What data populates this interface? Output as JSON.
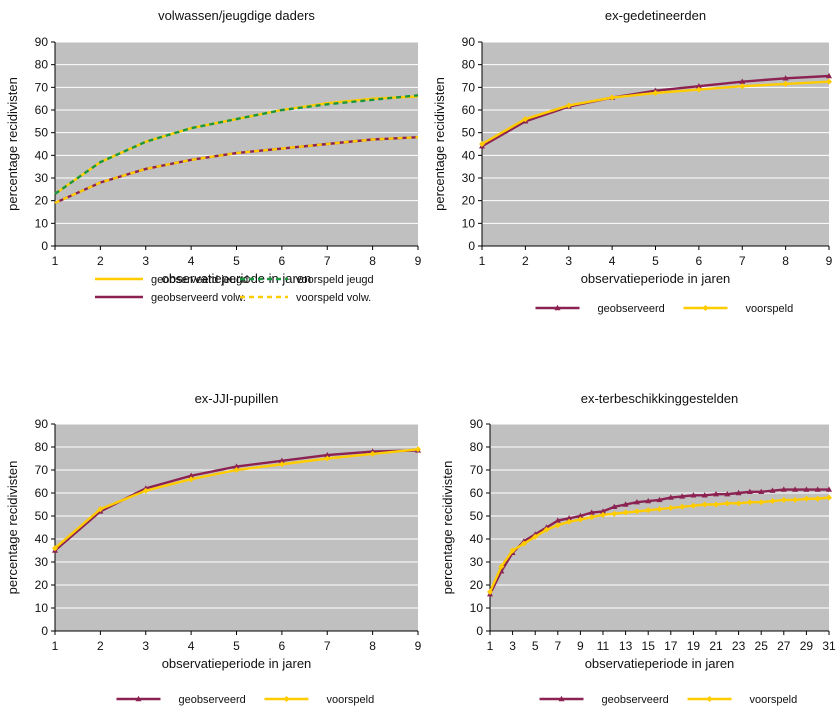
{
  "colors": {
    "plot_bg": "#c0c0c0",
    "grid": "#ffffff",
    "yellow": "#ffcc00",
    "green": "#1a9641",
    "purple": "#8b2252"
  },
  "chart_data": [
    {
      "type": "line",
      "title": "volwassen/jeugdige daders",
      "xlabel": "observatieperiode in jaren",
      "ylabel": "percentage recidivisten",
      "xlim": [
        1,
        9
      ],
      "ylim": [
        0,
        90
      ],
      "xticks": [
        1,
        2,
        3,
        4,
        5,
        6,
        7,
        8,
        9
      ],
      "yticks": [
        0,
        10,
        20,
        30,
        40,
        50,
        60,
        70,
        80,
        90
      ],
      "grid": true,
      "legend_position": "bottom",
      "series": [
        {
          "name": "geobserveerd jeugd",
          "color": "yellow",
          "style": "solid",
          "marker": "none",
          "x": [
            1,
            2,
            3,
            4,
            5,
            6,
            7,
            8,
            9
          ],
          "values": [
            23,
            37,
            46,
            52,
            56,
            60,
            63,
            65,
            66
          ]
        },
        {
          "name": "voorspeld jeugd",
          "color": "green",
          "style": "dashed",
          "marker": "none",
          "x": [
            1,
            2,
            3,
            4,
            5,
            6,
            7,
            8,
            9
          ],
          "values": [
            23,
            37,
            46,
            52,
            56,
            60,
            62.5,
            64.5,
            66.5
          ]
        },
        {
          "name": "geobserveerd volw.",
          "color": "purple",
          "style": "solid",
          "marker": "none",
          "x": [
            1,
            2,
            3,
            4,
            5,
            6,
            7,
            8,
            9
          ],
          "values": [
            19,
            28,
            34,
            38,
            41,
            43,
            45,
            47,
            48
          ]
        },
        {
          "name": "voorspeld volw.",
          "color": "yellow",
          "style": "dashed",
          "marker": "none",
          "x": [
            1,
            2,
            3,
            4,
            5,
            6,
            7,
            8,
            9
          ],
          "values": [
            19,
            28,
            34,
            38,
            41,
            43,
            45,
            47,
            48
          ]
        }
      ],
      "legend_layout": [
        [
          0,
          1
        ],
        [
          2,
          3
        ]
      ]
    },
    {
      "type": "line",
      "title": "ex-gedetineerden",
      "xlabel": "observatieperiode in jaren",
      "ylabel": "percentage recidivisten",
      "xlim": [
        1,
        9
      ],
      "ylim": [
        0,
        90
      ],
      "xticks": [
        1,
        2,
        3,
        4,
        5,
        6,
        7,
        8,
        9
      ],
      "yticks": [
        0,
        10,
        20,
        30,
        40,
        50,
        60,
        70,
        80,
        90
      ],
      "grid": true,
      "legend_position": "bottom",
      "series": [
        {
          "name": "geobserveerd",
          "color": "purple",
          "style": "solid",
          "marker": "triangle",
          "x": [
            1,
            2,
            3,
            4,
            5,
            6,
            7,
            8,
            9
          ],
          "values": [
            44,
            55,
            61.5,
            65.5,
            68.5,
            70.5,
            72.5,
            74,
            75
          ]
        },
        {
          "name": "voorspeld",
          "color": "yellow",
          "style": "solid",
          "marker": "diamond",
          "x": [
            1,
            2,
            3,
            4,
            5,
            6,
            7,
            8,
            9
          ],
          "values": [
            45,
            56,
            62,
            65.5,
            67.5,
            69,
            70.5,
            71.5,
            72.5
          ]
        }
      ],
      "legend_layout": [
        [
          0,
          1
        ]
      ]
    },
    {
      "type": "line",
      "title": "ex-JJI-pupillen",
      "xlabel": "observatieperiode in jaren",
      "ylabel": "percentage recidivisten",
      "xlim": [
        1,
        9
      ],
      "ylim": [
        0,
        90
      ],
      "xticks": [
        1,
        2,
        3,
        4,
        5,
        6,
        7,
        8,
        9
      ],
      "yticks": [
        0,
        10,
        20,
        30,
        40,
        50,
        60,
        70,
        80,
        90
      ],
      "grid": true,
      "legend_position": "bottom",
      "series": [
        {
          "name": "geobserveerd",
          "color": "purple",
          "style": "solid",
          "marker": "triangle",
          "x": [
            1,
            2,
            3,
            4,
            5,
            6,
            7,
            8,
            9
          ],
          "values": [
            35,
            52,
            62,
            67.5,
            71.5,
            74,
            76.5,
            78,
            78.5
          ]
        },
        {
          "name": "voorspeld",
          "color": "yellow",
          "style": "solid",
          "marker": "diamond",
          "x": [
            1,
            2,
            3,
            4,
            5,
            6,
            7,
            8,
            9
          ],
          "values": [
            36,
            53,
            61,
            66,
            70,
            72.5,
            75,
            77,
            79
          ]
        }
      ],
      "legend_layout": [
        [
          0,
          1
        ]
      ]
    },
    {
      "type": "line",
      "title": "ex-terbeschikkinggestelden",
      "xlabel": "observatieperiode in jaren",
      "ylabel": "percentage recidivisten",
      "xlim": [
        1,
        31
      ],
      "ylim": [
        0,
        90
      ],
      "xticks": [
        1,
        3,
        5,
        7,
        9,
        11,
        13,
        15,
        17,
        19,
        21,
        23,
        25,
        27,
        29,
        31
      ],
      "yticks": [
        0,
        10,
        20,
        30,
        40,
        50,
        60,
        70,
        80,
        90
      ],
      "grid": true,
      "legend_position": "bottom",
      "series": [
        {
          "name": "geobserveerd",
          "color": "purple",
          "style": "solid",
          "marker": "triangle",
          "x": [
            1,
            2,
            3,
            4,
            5,
            6,
            7,
            8,
            9,
            10,
            11,
            12,
            13,
            14,
            15,
            16,
            17,
            18,
            19,
            20,
            21,
            22,
            23,
            24,
            25,
            26,
            27,
            28,
            29,
            30,
            31
          ],
          "values": [
            16,
            26,
            34,
            39,
            42,
            45,
            48,
            49,
            50,
            51.5,
            52,
            54,
            55,
            56,
            56.5,
            57,
            58,
            58.5,
            59,
            59,
            59.5,
            59.5,
            60,
            60.5,
            60.5,
            61,
            61.5,
            61.5,
            61.5,
            61.5,
            61.5
          ]
        },
        {
          "name": "voorspeld",
          "color": "yellow",
          "style": "solid",
          "marker": "diamond",
          "x": [
            1,
            2,
            3,
            4,
            5,
            6,
            7,
            8,
            9,
            10,
            11,
            12,
            13,
            14,
            15,
            16,
            17,
            18,
            19,
            20,
            21,
            22,
            23,
            24,
            25,
            26,
            27,
            28,
            29,
            30,
            31
          ],
          "values": [
            17,
            28,
            35,
            38,
            41,
            44,
            46,
            47.5,
            48.5,
            49.5,
            50.5,
            51,
            51.5,
            52,
            52.5,
            53,
            53.5,
            54,
            54.5,
            55,
            55,
            55.5,
            55.5,
            56,
            56,
            56.5,
            57,
            57,
            57.5,
            57.5,
            58
          ]
        }
      ],
      "legend_layout": [
        [
          0,
          1
        ]
      ]
    }
  ]
}
